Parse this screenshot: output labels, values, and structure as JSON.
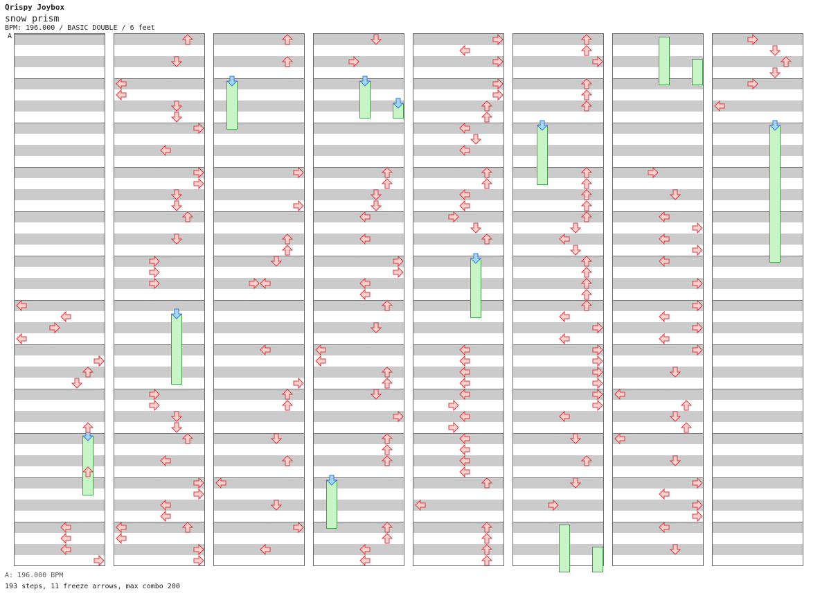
{
  "header": {
    "artist": "Qrispy Joybox",
    "title": "snow prism",
    "meta": "BPM: 196.000 / BASIC DOUBLE / 6 feet",
    "marker": "A"
  },
  "footer": {
    "bpm_line": "A: 196.000 BPM",
    "stats": "193 steps, 11 freeze arrows, max combo 200"
  },
  "colors": {
    "arrow_fill": "#ffd0d0",
    "arrow_stroke": "#d43a3a",
    "freeze_head_fill": "#a8d4ff",
    "freeze_head_stroke": "#2b7cc4",
    "freeze_body_fill": "#c8f5c8",
    "freeze_body_stroke": "#4a9b4a",
    "row_shade": "#cbcbcb"
  },
  "lanes": [
    "left",
    "down",
    "up",
    "right",
    "left",
    "down",
    "up",
    "right"
  ],
  "chart": {
    "columns": 8,
    "measures_per_column": 12,
    "notes": [
      [
        [
          0,
          6,
          0,
          "L"
        ],
        [
          0,
          6,
          1,
          "l"
        ],
        [
          0,
          6,
          2,
          "R"
        ],
        [
          0,
          6,
          3,
          "L"
        ],
        [
          0,
          7,
          1,
          "r"
        ],
        [
          0,
          7,
          1,
          "r"
        ],
        [
          0,
          7,
          2,
          "u"
        ],
        [
          0,
          7,
          3,
          "d"
        ],
        [
          0,
          8,
          3,
          "u"
        ],
        [
          0,
          9,
          3,
          "u"
        ],
        [
          0,
          11,
          0,
          "l"
        ],
        [
          0,
          11,
          1,
          "l"
        ],
        [
          0,
          11,
          2,
          "l"
        ],
        [
          0,
          11,
          3,
          "r"
        ]
      ],
      [
        [
          1,
          0,
          0,
          "u"
        ],
        [
          1,
          0,
          2,
          "d"
        ],
        [
          1,
          1,
          0,
          "L"
        ],
        [
          1,
          1,
          1,
          "L"
        ],
        [
          1,
          1,
          2,
          "d"
        ],
        [
          1,
          1,
          3,
          "d"
        ],
        [
          1,
          2,
          0,
          "r"
        ],
        [
          1,
          2,
          2,
          "l"
        ],
        [
          1,
          3,
          0,
          "r"
        ],
        [
          1,
          3,
          1,
          "r"
        ],
        [
          1,
          3,
          2,
          "d"
        ],
        [
          1,
          3,
          3,
          "d"
        ],
        [
          1,
          4,
          0,
          "u"
        ],
        [
          1,
          4,
          2,
          "d"
        ],
        [
          1,
          5,
          0,
          "R"
        ],
        [
          1,
          5,
          1,
          "R"
        ],
        [
          1,
          5,
          2,
          "R"
        ],
        [
          1,
          8,
          0,
          "R"
        ],
        [
          1,
          8,
          1,
          "R"
        ],
        [
          1,
          8,
          2,
          "d"
        ],
        [
          1,
          8,
          3,
          "d"
        ],
        [
          1,
          9,
          0,
          "u"
        ],
        [
          1,
          9,
          2,
          "l"
        ],
        [
          1,
          10,
          0,
          "r"
        ],
        [
          1,
          10,
          1,
          "r"
        ],
        [
          1,
          10,
          2,
          "l"
        ],
        [
          1,
          10,
          3,
          "l"
        ],
        [
          1,
          11,
          0,
          "u"
        ],
        [
          1,
          11,
          2,
          "r"
        ],
        [
          1,
          11,
          0,
          "L"
        ],
        [
          1,
          11,
          1,
          "L"
        ],
        [
          1,
          11,
          2,
          "r"
        ],
        [
          1,
          11,
          3,
          "r"
        ]
      ],
      [
        [
          2,
          0,
          0,
          "u"
        ],
        [
          2,
          0,
          2,
          "u"
        ],
        [
          2,
          3,
          0,
          "r"
        ],
        [
          2,
          3,
          3,
          "r"
        ],
        [
          2,
          4,
          2,
          "u"
        ],
        [
          2,
          4,
          3,
          "u"
        ],
        [
          2,
          5,
          0,
          "d"
        ],
        [
          2,
          5,
          2,
          "l"
        ],
        [
          2,
          5,
          2,
          "R"
        ],
        [
          2,
          7,
          0,
          "l"
        ],
        [
          2,
          7,
          3,
          "r"
        ],
        [
          2,
          8,
          0,
          "u"
        ],
        [
          2,
          8,
          1,
          "u"
        ],
        [
          2,
          9,
          0,
          "d"
        ],
        [
          2,
          9,
          2,
          "u"
        ],
        [
          2,
          10,
          0,
          "L"
        ],
        [
          2,
          10,
          2,
          "d"
        ],
        [
          2,
          11,
          0,
          "r"
        ],
        [
          2,
          11,
          2,
          "l"
        ]
      ],
      [
        [
          3,
          0,
          0,
          "d"
        ],
        [
          3,
          0,
          2,
          "R"
        ],
        [
          3,
          3,
          0,
          "u"
        ],
        [
          3,
          3,
          1,
          "u"
        ],
        [
          3,
          3,
          2,
          "d"
        ],
        [
          3,
          3,
          3,
          "d"
        ],
        [
          3,
          4,
          0,
          "l"
        ],
        [
          3,
          4,
          2,
          "l"
        ],
        [
          3,
          5,
          0,
          "r"
        ],
        [
          3,
          5,
          1,
          "r"
        ],
        [
          3,
          5,
          2,
          "l"
        ],
        [
          3,
          5,
          3,
          "l"
        ],
        [
          3,
          6,
          0,
          "u"
        ],
        [
          3,
          6,
          2,
          "d"
        ],
        [
          3,
          7,
          0,
          "L"
        ],
        [
          3,
          7,
          1,
          "L"
        ],
        [
          3,
          7,
          2,
          "u"
        ],
        [
          3,
          7,
          3,
          "u"
        ],
        [
          3,
          8,
          0,
          "d"
        ],
        [
          3,
          8,
          2,
          "r"
        ],
        [
          3,
          9,
          0,
          "u"
        ],
        [
          3,
          9,
          1,
          "u"
        ],
        [
          3,
          9,
          2,
          "u"
        ],
        [
          3,
          11,
          0,
          "u"
        ],
        [
          3,
          11,
          1,
          "u"
        ],
        [
          3,
          11,
          2,
          "l"
        ],
        [
          3,
          11,
          3,
          "l"
        ]
      ],
      [
        [
          4,
          0,
          0,
          "r"
        ],
        [
          4,
          0,
          1,
          "l"
        ],
        [
          4,
          0,
          2,
          "r"
        ],
        [
          4,
          1,
          0,
          "r"
        ],
        [
          4,
          1,
          1,
          "r"
        ],
        [
          4,
          1,
          2,
          "u"
        ],
        [
          4,
          1,
          3,
          "u"
        ],
        [
          4,
          2,
          0,
          "l"
        ],
        [
          4,
          2,
          1,
          "d"
        ],
        [
          4,
          2,
          2,
          "l"
        ],
        [
          4,
          3,
          0,
          "u"
        ],
        [
          4,
          3,
          1,
          "u"
        ],
        [
          4,
          3,
          2,
          "l"
        ],
        [
          4,
          3,
          3,
          "l"
        ],
        [
          4,
          4,
          0,
          "R"
        ],
        [
          4,
          4,
          1,
          "d"
        ],
        [
          4,
          4,
          2,
          "u"
        ],
        [
          4,
          7,
          0,
          "l"
        ],
        [
          4,
          7,
          1,
          "l"
        ],
        [
          4,
          7,
          2,
          "l"
        ],
        [
          4,
          7,
          3,
          "l"
        ],
        [
          4,
          8,
          0,
          "l"
        ],
        [
          4,
          8,
          1,
          "R"
        ],
        [
          4,
          8,
          2,
          "l"
        ],
        [
          4,
          8,
          3,
          "R"
        ],
        [
          4,
          9,
          0,
          "l"
        ],
        [
          4,
          9,
          1,
          "l"
        ],
        [
          4,
          9,
          2,
          "l"
        ],
        [
          4,
          9,
          3,
          "l"
        ],
        [
          4,
          10,
          0,
          "u"
        ],
        [
          4,
          10,
          2,
          "L"
        ],
        [
          4,
          11,
          0,
          "u"
        ],
        [
          4,
          11,
          1,
          "u"
        ],
        [
          4,
          11,
          2,
          "u"
        ],
        [
          4,
          11,
          3,
          "u"
        ]
      ],
      [
        [
          5,
          0,
          0,
          "u"
        ],
        [
          5,
          0,
          1,
          "u"
        ],
        [
          5,
          0,
          2,
          "r"
        ],
        [
          5,
          1,
          0,
          "u"
        ],
        [
          5,
          1,
          1,
          "u"
        ],
        [
          5,
          1,
          2,
          "u"
        ],
        [
          5,
          3,
          0,
          "u"
        ],
        [
          5,
          3,
          1,
          "u"
        ],
        [
          5,
          3,
          2,
          "u"
        ],
        [
          5,
          3,
          3,
          "u"
        ],
        [
          5,
          4,
          0,
          "u"
        ],
        [
          5,
          4,
          1,
          "d"
        ],
        [
          5,
          4,
          2,
          "l"
        ],
        [
          5,
          4,
          3,
          "d"
        ],
        [
          5,
          5,
          0,
          "u"
        ],
        [
          5,
          5,
          1,
          "u"
        ],
        [
          5,
          5,
          2,
          "u"
        ],
        [
          5,
          5,
          3,
          "u"
        ],
        [
          5,
          6,
          0,
          "u"
        ],
        [
          5,
          6,
          1,
          "l"
        ],
        [
          5,
          6,
          2,
          "r"
        ],
        [
          5,
          6,
          3,
          "l"
        ],
        [
          5,
          7,
          0,
          "r"
        ],
        [
          5,
          7,
          1,
          "r"
        ],
        [
          5,
          7,
          2,
          "r"
        ],
        [
          5,
          7,
          3,
          "r"
        ],
        [
          5,
          8,
          0,
          "r"
        ],
        [
          5,
          8,
          1,
          "r"
        ],
        [
          5,
          8,
          2,
          "l"
        ],
        [
          5,
          9,
          0,
          "d"
        ],
        [
          5,
          9,
          2,
          "u"
        ],
        [
          5,
          10,
          0,
          "d"
        ],
        [
          5,
          10,
          2,
          "R"
        ]
      ],
      [
        [
          6,
          3,
          0,
          "R"
        ],
        [
          6,
          3,
          2,
          "d"
        ],
        [
          6,
          4,
          0,
          "l"
        ],
        [
          6,
          4,
          1,
          "r"
        ],
        [
          6,
          4,
          2,
          "l"
        ],
        [
          6,
          4,
          3,
          "r"
        ],
        [
          6,
          5,
          0,
          "l"
        ],
        [
          6,
          5,
          2,
          "r"
        ],
        [
          6,
          6,
          0,
          "r"
        ],
        [
          6,
          6,
          1,
          "l"
        ],
        [
          6,
          6,
          2,
          "r"
        ],
        [
          6,
          6,
          3,
          "l"
        ],
        [
          6,
          7,
          0,
          "r"
        ],
        [
          6,
          7,
          2,
          "d"
        ],
        [
          6,
          8,
          0,
          "L"
        ],
        [
          6,
          8,
          1,
          "u"
        ],
        [
          6,
          8,
          2,
          "d"
        ],
        [
          6,
          8,
          3,
          "u"
        ],
        [
          6,
          9,
          0,
          "L"
        ],
        [
          6,
          9,
          2,
          "d"
        ],
        [
          6,
          10,
          0,
          "r"
        ],
        [
          6,
          10,
          1,
          "l"
        ],
        [
          6,
          10,
          2,
          "r"
        ],
        [
          6,
          10,
          3,
          "r"
        ],
        [
          6,
          11,
          0,
          "l"
        ],
        [
          6,
          11,
          2,
          "d"
        ]
      ],
      [
        [
          7,
          0,
          0,
          "R"
        ],
        [
          7,
          0,
          1,
          "d"
        ],
        [
          7,
          0,
          2,
          "u"
        ],
        [
          7,
          0,
          3,
          "d"
        ],
        [
          7,
          1,
          0,
          "R"
        ],
        [
          7,
          1,
          2,
          "L"
        ]
      ]
    ],
    "freezes": [
      [
        0,
        9,
        0,
        9,
        5,
        0
      ],
      [
        1,
        6,
        1,
        7,
        3,
        0
      ],
      [
        2,
        1,
        0,
        2,
        0,
        0
      ],
      [
        3,
        1,
        0,
        1,
        3,
        0
      ],
      [
        3,
        1,
        2,
        1,
        3,
        0
      ],
      [
        3,
        10,
        0,
        11,
        0,
        0
      ],
      [
        4,
        5,
        0,
        6,
        1,
        0
      ],
      [
        5,
        2,
        0,
        3,
        1,
        0
      ],
      [
        5,
        11,
        0,
        12,
        1,
        1
      ],
      [
        5,
        11,
        2,
        12,
        1,
        1
      ],
      [
        6,
        0,
        0,
        1,
        0,
        1
      ],
      [
        6,
        0,
        2,
        1,
        0,
        1
      ],
      [
        7,
        2,
        0,
        5,
        0,
        0
      ]
    ]
  }
}
